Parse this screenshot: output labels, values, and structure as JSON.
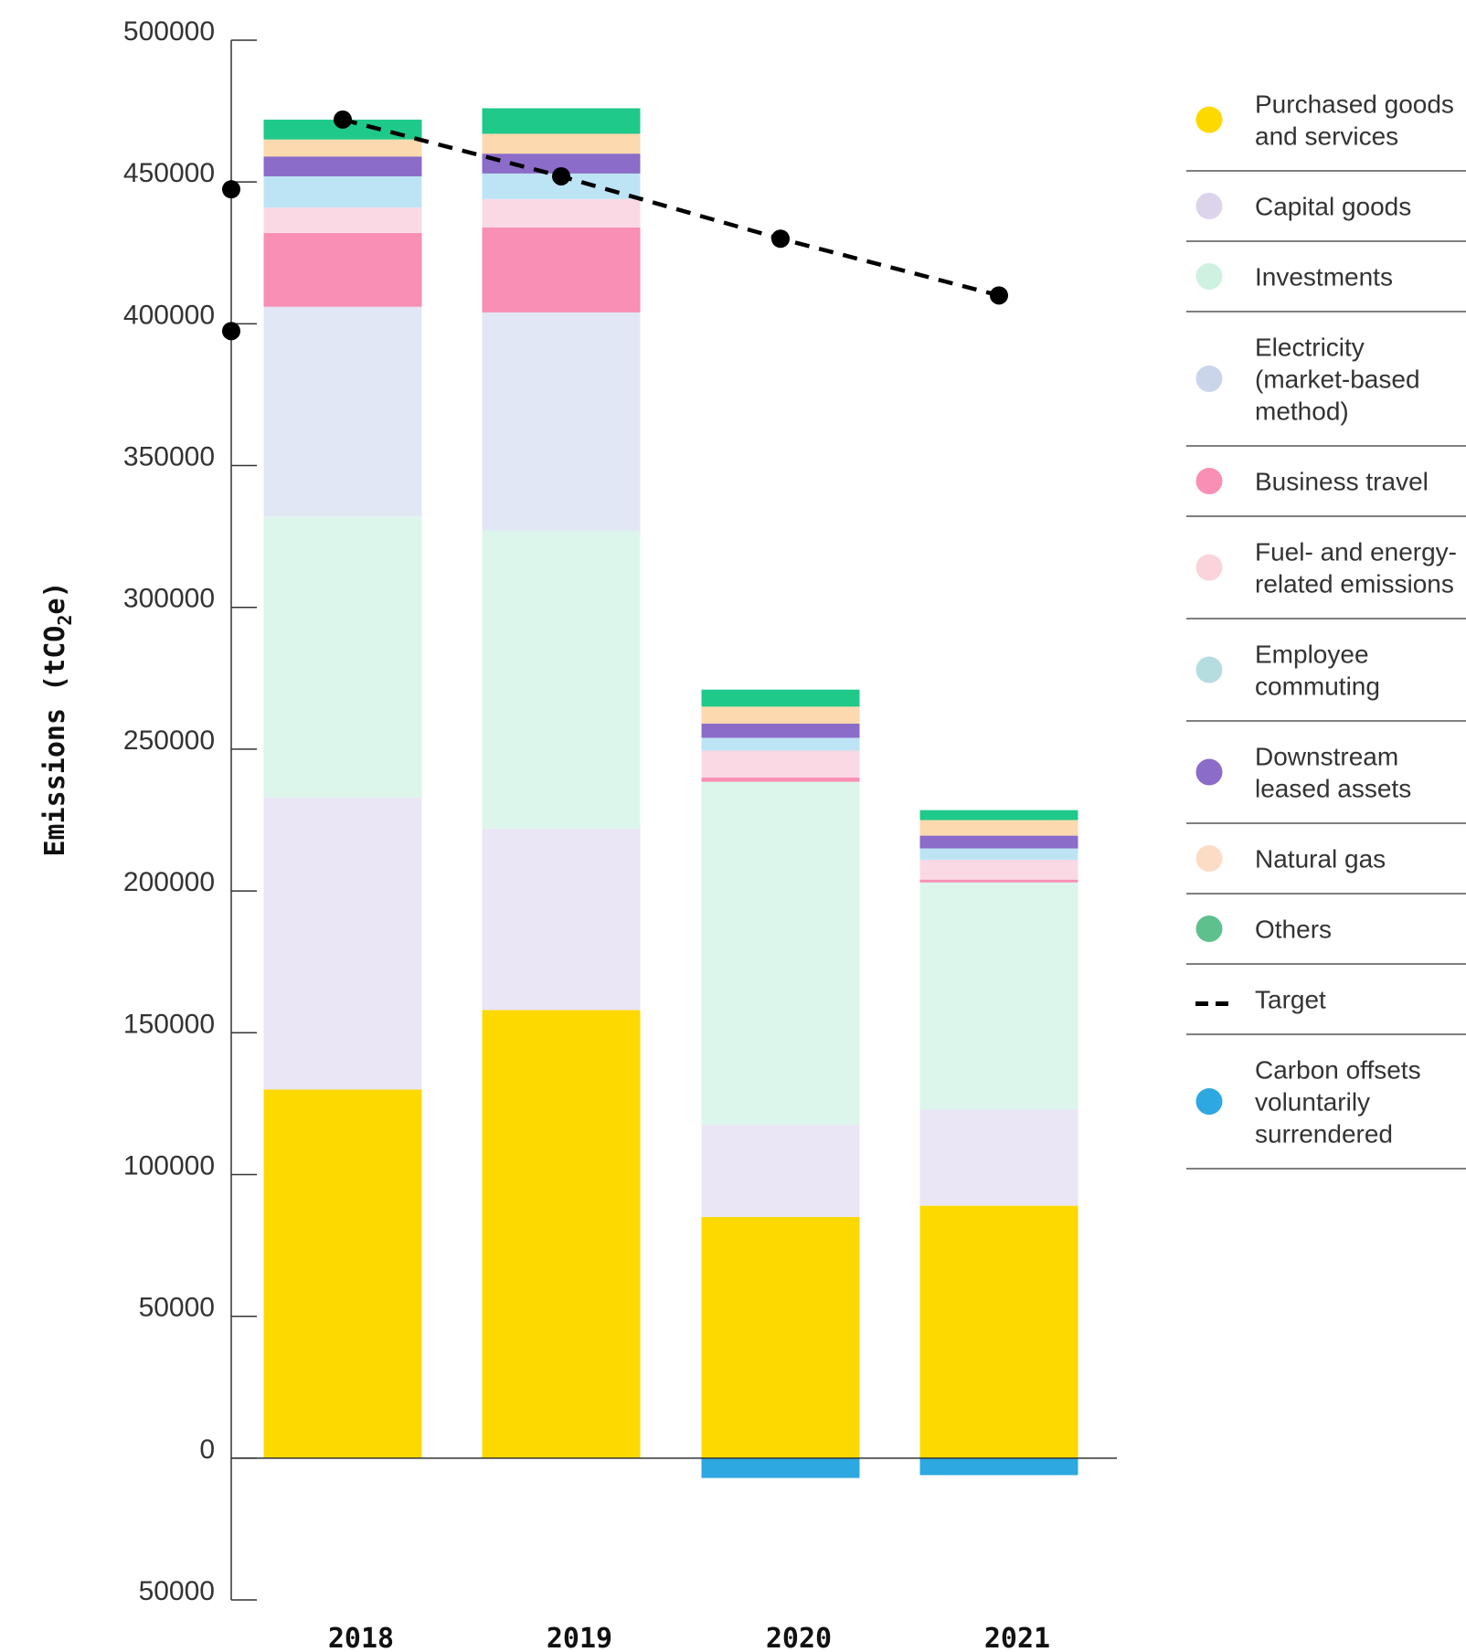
{
  "chart_data": {
    "type": "bar",
    "stacked": true,
    "categories": [
      "2018",
      "2019",
      "2020",
      "2021"
    ],
    "ylabel_main": "Emissions (tCO",
    "ylabel_sub": "2",
    "ylabel_end": "e)",
    "ylim": [
      -50000,
      500000
    ],
    "yticks": [
      -50000,
      0,
      50000,
      100000,
      150000,
      200000,
      250000,
      300000,
      350000,
      400000,
      450000,
      500000
    ],
    "ytick_labels": [
      "50000",
      "0",
      "50000",
      "100000",
      "150000",
      "200000",
      "250000",
      "300000",
      "350000",
      "400000",
      "450000",
      "500000"
    ],
    "grid": false,
    "legend_position": "right",
    "series": [
      {
        "name": "Purchased goods and services",
        "legend_lines": [
          "Purchased goods",
          "and services"
        ],
        "color": "#FDD900",
        "legend_color": "#FDD900",
        "values": [
          130000,
          158000,
          85000,
          89000
        ]
      },
      {
        "name": "Capital goods",
        "legend_lines": [
          "Capital goods"
        ],
        "color": "#EAE6F5",
        "legend_color": "#DCD4EB",
        "values": [
          103000,
          64000,
          32500,
          34000
        ]
      },
      {
        "name": "Investments",
        "legend_lines": [
          "Investments"
        ],
        "color": "#DDF6EB",
        "legend_color": "#CFF1E1",
        "values": [
          99000,
          105000,
          121000,
          80000
        ]
      },
      {
        "name": "Electricity (market-based method)",
        "legend_lines": [
          "Electricity",
          "(market-based",
          "method)"
        ],
        "color": "#E2E7F5",
        "legend_color": "#CBD5EA",
        "values": [
          74000,
          77000,
          0,
          0
        ]
      },
      {
        "name": "Business travel",
        "legend_lines": [
          "Business travel"
        ],
        "color": "#F98FB5",
        "legend_color": "#F98FB5",
        "values": [
          26000,
          30000,
          1500,
          1000
        ]
      },
      {
        "name": "Fuel- and energy-related emissions",
        "legend_lines": [
          "Fuel- and energy-",
          "related emissions"
        ],
        "color": "#FAD9E5",
        "legend_color": "#FAD4DA",
        "values": [
          9000,
          10000,
          9500,
          7000
        ]
      },
      {
        "name": "Employee commuting",
        "legend_lines": [
          "Employee",
          "commuting"
        ],
        "color": "#BDE4F5",
        "legend_color": "#B5DDE0",
        "values": [
          11000,
          9000,
          4500,
          4000
        ]
      },
      {
        "name": "Downstream leased assets",
        "legend_lines": [
          "Downstream",
          "leased assets"
        ],
        "color": "#8B6CC8",
        "legend_color": "#8B6CC8",
        "values": [
          7000,
          7000,
          5000,
          4500
        ]
      },
      {
        "name": "Natural gas",
        "legend_lines": [
          "Natural gas"
        ],
        "color": "#FCD9AE",
        "legend_color": "#FCDCC4",
        "values": [
          6000,
          7000,
          6000,
          5500
        ]
      },
      {
        "name": "Others",
        "legend_lines": [
          "Others"
        ],
        "color": "#1FC98A",
        "legend_color": "#5EC18D",
        "values": [
          7000,
          9000,
          6000,
          3500
        ]
      }
    ],
    "offsets": {
      "name": "Carbon offsets voluntarily surrendered",
      "legend_lines": [
        "Carbon offsets",
        "voluntarily",
        "surrendered"
      ],
      "color": "#2EA8E0",
      "values": [
        0,
        0,
        -7000,
        -6000
      ]
    },
    "target": {
      "name": "Target",
      "legend_lines": [
        "Target"
      ],
      "x": [
        "2018",
        "2019",
        "2020",
        "2021"
      ],
      "values": [
        472000,
        452000,
        430000,
        410000
      ]
    },
    "axis_markers": [
      450000,
      400000
    ]
  }
}
